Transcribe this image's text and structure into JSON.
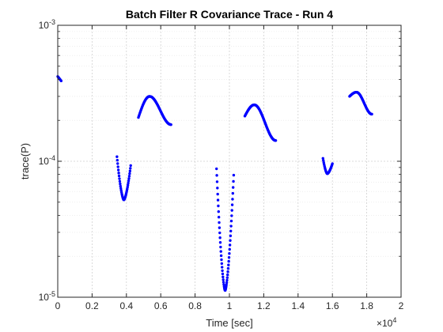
{
  "chart_data": {
    "type": "scatter",
    "title": "Batch Filter R Covariance Trace - Run 4",
    "xlabel": "Time [sec]",
    "ylabel": "trace(P)",
    "x_multiplier_label": "×10",
    "x_multiplier_exponent": "4",
    "x_ticks": [
      0,
      0.2,
      0.4,
      0.6,
      0.8,
      1,
      1.2,
      1.4,
      1.6,
      1.8,
      2
    ],
    "x_tick_labels": [
      "0",
      "0.2",
      "0.4",
      "0.6",
      "0.8",
      "1",
      "1.2",
      "1.4",
      "1.6",
      "1.8",
      "2"
    ],
    "xlim": [
      0,
      2
    ],
    "y_scale": "log",
    "ylim": [
      1e-05,
      0.001
    ],
    "y_major_ticks": [
      1e-05,
      0.0001,
      0.001
    ],
    "y_tick_labels": [
      {
        "base": "10",
        "exp": "-5"
      },
      {
        "base": "10",
        "exp": "-4"
      },
      {
        "base": "10",
        "exp": "-3"
      }
    ],
    "grid": true,
    "minor_grid": true,
    "marker_color": "#0000ff",
    "series": [
      {
        "segments": [
          {
            "x": [
              0.0,
              0.02
            ],
            "y": [
              0.00042,
              0.00039
            ],
            "n": 8
          },
          {
            "shape": "bump",
            "x0": 0.47,
            "x1": 0.66,
            "yStart": 0.00021,
            "yPeak": 0.0003,
            "xPeak": 0.535,
            "yEnd": 0.000186,
            "n": 70
          },
          {
            "shape": "bump",
            "x0": 1.09,
            "x1": 1.27,
            "yStart": 0.000215,
            "yPeak": 0.00026,
            "xPeak": 1.145,
            "yEnd": 0.000142,
            "n": 70
          },
          {
            "shape": "bump",
            "x0": 1.7,
            "x1": 1.83,
            "yStart": 0.0003,
            "yPeak": 0.000322,
            "xPeak": 1.74,
            "yEnd": 0.000222,
            "n": 50
          },
          {
            "shape": "valley",
            "x0": 0.345,
            "x1": 0.425,
            "yStart": 0.000108,
            "yMin": 5.2e-05,
            "xMin": 0.385,
            "yEnd": 9.3e-05,
            "n": 40
          },
          {
            "shape": "valley",
            "x0": 0.925,
            "x1": 1.025,
            "yStart": 8.8e-05,
            "yMin": 1.12e-05,
            "xMin": 0.975,
            "yEnd": 7.9e-05,
            "n": 60
          },
          {
            "shape": "valley",
            "x0": 1.545,
            "x1": 1.6,
            "yStart": 0.000105,
            "yMin": 8.1e-05,
            "xMin": 1.57,
            "yEnd": 9.6e-05,
            "n": 25
          }
        ]
      }
    ]
  }
}
